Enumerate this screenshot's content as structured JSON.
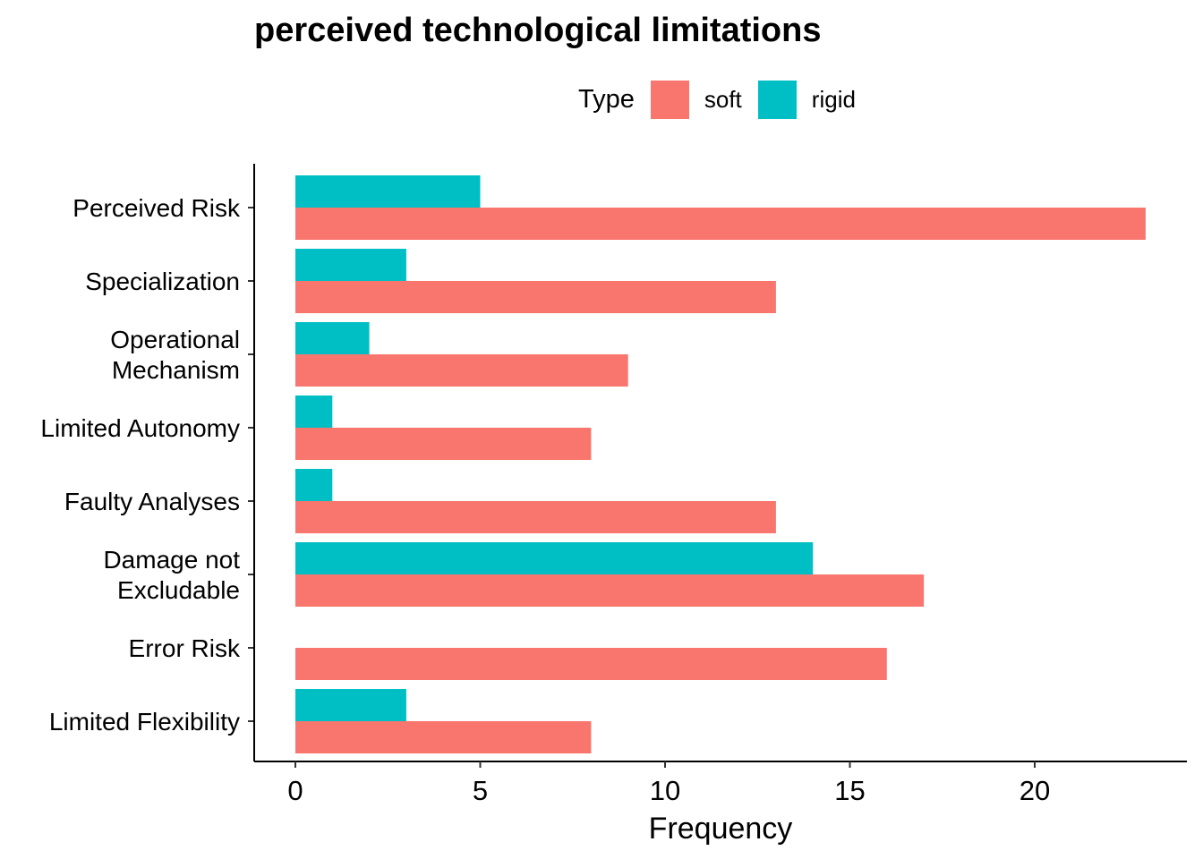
{
  "chart_data": {
    "type": "bar",
    "orientation": "horizontal",
    "title": "perceived technological limitations",
    "xlabel": "Frequency",
    "ylabel": "",
    "xlim": [
      0,
      23
    ],
    "xticks": [
      0,
      5,
      10,
      15,
      20
    ],
    "grid": false,
    "legend_position": "top",
    "legend_title": "Type",
    "categories": [
      "Perceived Risk",
      "Specialization",
      "Operational\nMechanism",
      "Limited Autonomy",
      "Faulty Analyses",
      "Damage not\nExcludable",
      "Error Risk",
      "Limited Flexibility"
    ],
    "series": [
      {
        "name": "soft",
        "color": "#F8766D",
        "values": [
          23,
          13,
          9,
          8,
          13,
          17,
          16,
          8
        ]
      },
      {
        "name": "rigid",
        "color": "#00BFC4",
        "values": [
          5,
          3,
          2,
          1,
          1,
          14,
          0,
          3
        ]
      }
    ]
  }
}
